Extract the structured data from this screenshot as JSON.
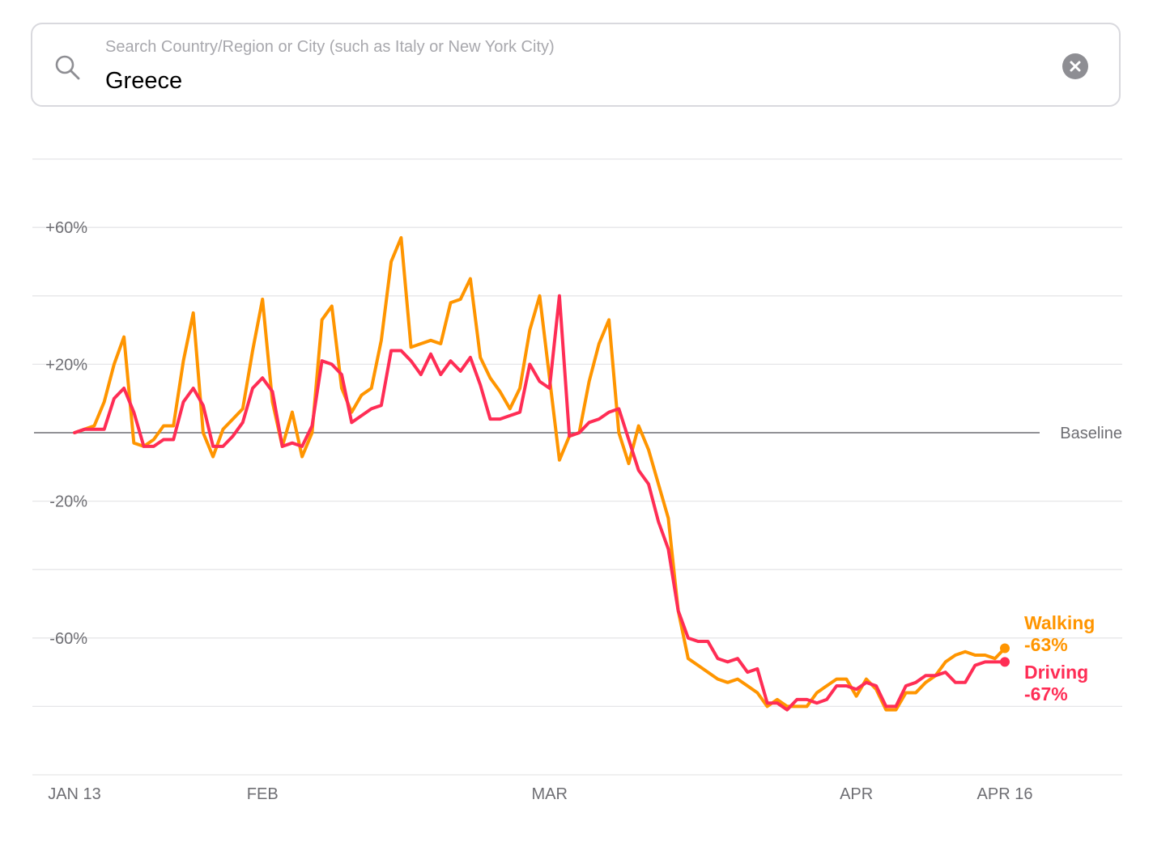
{
  "search": {
    "placeholder": "Search Country/Region or City (such as Italy or New York City)",
    "value": "Greece"
  },
  "icons": {
    "search": "search-icon",
    "clear": "clear-circle-icon"
  },
  "chart_data": {
    "type": "line",
    "title": "",
    "xlabel": "",
    "ylabel": "",
    "baseline_label": "Baseline",
    "ylim": [
      -100,
      80
    ],
    "y_ticks": [
      60,
      20,
      -20,
      -60
    ],
    "y_tick_labels": [
      "+60%",
      "+20%",
      "-20%",
      "-60%"
    ],
    "x_ticks": [
      {
        "day": 0,
        "label": "JAN 13"
      },
      {
        "day": 19,
        "label": "FEB"
      },
      {
        "day": 48,
        "label": "MAR"
      },
      {
        "day": 79,
        "label": "APR"
      },
      {
        "day": 94,
        "label": "APR 16"
      }
    ],
    "x_range_days": [
      0,
      94
    ],
    "grid": true,
    "colors": {
      "walking": "#ff9500",
      "driving": "#ff2d55",
      "baseline": "#6e6e73",
      "grid": "#e6e6e8"
    },
    "series": [
      {
        "name": "Walking",
        "end_label": "-63%",
        "color": "#ff9500",
        "values": [
          0,
          1,
          2,
          9,
          20,
          28,
          -3,
          -4,
          -2,
          2,
          2,
          21,
          35,
          0,
          -7,
          1,
          4,
          7,
          24,
          39,
          9,
          -4,
          6,
          -7,
          0,
          33,
          37,
          13,
          6,
          11,
          13,
          27,
          50,
          57,
          25,
          26,
          27,
          26,
          38,
          39,
          45,
          22,
          16,
          12,
          7,
          13,
          30,
          40,
          16,
          -8,
          -1,
          0,
          15,
          26,
          33,
          0,
          -9,
          2,
          -5,
          -15,
          -25,
          -52,
          -66,
          -68,
          -70,
          -72,
          -73,
          -72,
          -74,
          -76,
          -80,
          -78,
          -80,
          -80,
          -80,
          -76,
          -74,
          -72,
          -72,
          -77,
          -72,
          -75,
          -81,
          -81,
          -76,
          -76,
          -73,
          -71,
          -67,
          -65,
          -64,
          -65,
          -65,
          -66,
          -63
        ],
        "values_note": "daily percent change from baseline"
      },
      {
        "name": "Driving",
        "end_label": "-67%",
        "color": "#ff2d55",
        "values": [
          0,
          1,
          1,
          1,
          10,
          13,
          6,
          -4,
          -4,
          -2,
          -2,
          9,
          13,
          8,
          -4,
          -4,
          -1,
          3,
          13,
          16,
          12,
          -4,
          -3,
          -4,
          2,
          21,
          20,
          17,
          3,
          5,
          7,
          8,
          24,
          24,
          21,
          17,
          23,
          17,
          21,
          18,
          22,
          14,
          4,
          4,
          5,
          6,
          20,
          15,
          13,
          40,
          -1,
          0,
          3,
          4,
          6,
          7,
          -2,
          -11,
          -15,
          -26,
          -34,
          -52,
          -60,
          -61,
          -61,
          -66,
          -67,
          -66,
          -70,
          -69,
          -79,
          -79,
          -81,
          -78,
          -78,
          -79,
          -78,
          -74,
          -74,
          -75,
          -73,
          -74,
          -80,
          -80,
          -74,
          -73,
          -71,
          -71,
          -70,
          -73,
          -73,
          -68,
          -67,
          -67,
          -67
        ]
      }
    ]
  }
}
